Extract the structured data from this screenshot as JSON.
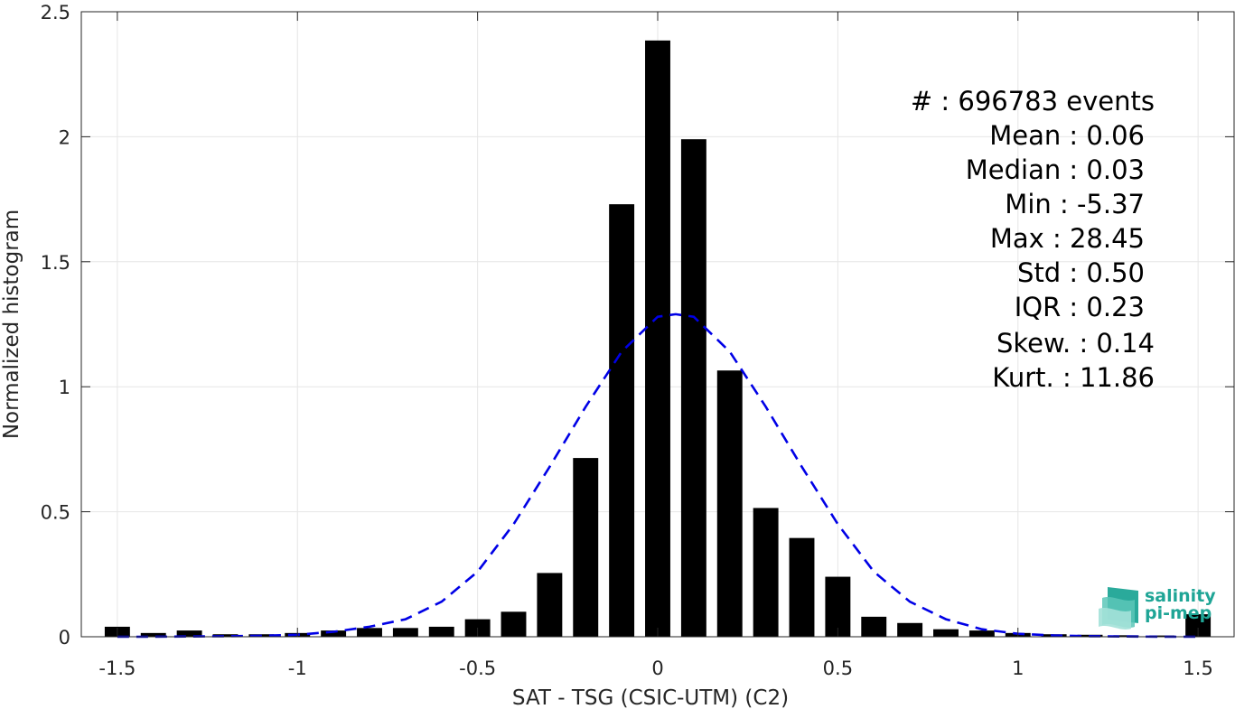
{
  "chart_data": {
    "type": "bar",
    "xlabel": "SAT - TSG (CSIC-UTM) (C2)",
    "ylabel": "Normalized histogram",
    "xlim": [
      -1.6,
      1.6
    ],
    "ylim": [
      0,
      2.5
    ],
    "xticks": [
      -1.5,
      -1,
      -0.5,
      0,
      0.5,
      1,
      1.5
    ],
    "xtick_labels": [
      "-1.5",
      "-1",
      "-0.5",
      "0",
      "0.5",
      "1",
      "1.5"
    ],
    "yticks": [
      0,
      0.5,
      1,
      1.5,
      2,
      2.5
    ],
    "ytick_labels": [
      "0",
      "0.5",
      "1",
      "1.5",
      "2",
      "2.5"
    ],
    "grid": true,
    "bar_color": "#000000",
    "curve_color": "#0000e6",
    "bin_width": 0.1,
    "x": [
      -1.5,
      -1.4,
      -1.3,
      -1.2,
      -1.1,
      -1.0,
      -0.9,
      -0.8,
      -0.7,
      -0.6,
      -0.5,
      -0.4,
      -0.3,
      -0.2,
      -0.1,
      0.0,
      0.1,
      0.2,
      0.3,
      0.4,
      0.5,
      0.6,
      0.7,
      0.8,
      0.9,
      1.0,
      1.1,
      1.2,
      1.3,
      1.4,
      1.5
    ],
    "values": [
      0.04,
      0.015,
      0.025,
      0.01,
      0.01,
      0.015,
      0.025,
      0.035,
      0.035,
      0.04,
      0.07,
      0.1,
      0.255,
      0.715,
      1.73,
      2.385,
      1.99,
      1.065,
      0.515,
      0.395,
      0.24,
      0.08,
      0.055,
      0.03,
      0.025,
      0.015,
      0.01,
      0.008,
      0.006,
      0.005,
      0.09
    ],
    "fit_curve": {
      "style": "dashed",
      "x": [
        -1.5,
        -1.4,
        -1.3,
        -1.2,
        -1.1,
        -1.0,
        -0.9,
        -0.8,
        -0.7,
        -0.6,
        -0.5,
        -0.4,
        -0.3,
        -0.2,
        -0.1,
        0.0,
        0.05,
        0.1,
        0.2,
        0.3,
        0.4,
        0.5,
        0.6,
        0.7,
        0.8,
        0.9,
        1.0,
        1.1,
        1.2,
        1.3,
        1.4,
        1.5
      ],
      "y": [
        0.0,
        0.0,
        0.001,
        0.002,
        0.004,
        0.008,
        0.02,
        0.04,
        0.07,
        0.14,
        0.26,
        0.45,
        0.68,
        0.92,
        1.14,
        1.28,
        1.29,
        1.28,
        1.14,
        0.92,
        0.68,
        0.45,
        0.26,
        0.14,
        0.07,
        0.03,
        0.012,
        0.005,
        0.002,
        0.001,
        0.0,
        0.0
      ]
    },
    "annotations": [
      "#  : 696783 events",
      "Mean : 0.06",
      "Median : 0.03",
      "Min : -5.37",
      "Max : 28.45",
      "Std : 0.50",
      "IQR : 0.23",
      "Skew. : 0.14",
      "Kurt. : 11.86"
    ]
  },
  "logo": {
    "line1": "salinity",
    "line2": "pi-mep",
    "color": "#1fa596"
  }
}
